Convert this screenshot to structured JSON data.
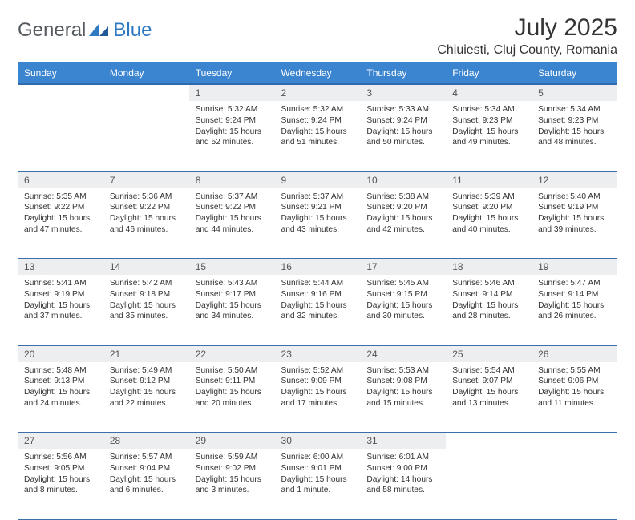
{
  "brand": {
    "part1": "General",
    "part2": "Blue"
  },
  "title": "July 2025",
  "location": "Chiuiesti, Cluj County, Romania",
  "colors": {
    "header_bg": "#3b84d0",
    "header_border": "#2f6bac",
    "row_border": "#3b6fa8",
    "daynum_bg": "#eceef0",
    "brand_gray": "#555a60",
    "brand_blue": "#2f78c2",
    "text": "#333333",
    "bg": "#ffffff"
  },
  "day_headers": [
    "Sunday",
    "Monday",
    "Tuesday",
    "Wednesday",
    "Thursday",
    "Friday",
    "Saturday"
  ],
  "weeks": [
    {
      "nums": [
        "",
        "",
        "1",
        "2",
        "3",
        "4",
        "5"
      ],
      "cells": [
        null,
        null,
        {
          "sunrise": "Sunrise: 5:32 AM",
          "sunset": "Sunset: 9:24 PM",
          "daylight": "Daylight: 15 hours and 52 minutes."
        },
        {
          "sunrise": "Sunrise: 5:32 AM",
          "sunset": "Sunset: 9:24 PM",
          "daylight": "Daylight: 15 hours and 51 minutes."
        },
        {
          "sunrise": "Sunrise: 5:33 AM",
          "sunset": "Sunset: 9:24 PM",
          "daylight": "Daylight: 15 hours and 50 minutes."
        },
        {
          "sunrise": "Sunrise: 5:34 AM",
          "sunset": "Sunset: 9:23 PM",
          "daylight": "Daylight: 15 hours and 49 minutes."
        },
        {
          "sunrise": "Sunrise: 5:34 AM",
          "sunset": "Sunset: 9:23 PM",
          "daylight": "Daylight: 15 hours and 48 minutes."
        }
      ]
    },
    {
      "nums": [
        "6",
        "7",
        "8",
        "9",
        "10",
        "11",
        "12"
      ],
      "cells": [
        {
          "sunrise": "Sunrise: 5:35 AM",
          "sunset": "Sunset: 9:22 PM",
          "daylight": "Daylight: 15 hours and 47 minutes."
        },
        {
          "sunrise": "Sunrise: 5:36 AM",
          "sunset": "Sunset: 9:22 PM",
          "daylight": "Daylight: 15 hours and 46 minutes."
        },
        {
          "sunrise": "Sunrise: 5:37 AM",
          "sunset": "Sunset: 9:22 PM",
          "daylight": "Daylight: 15 hours and 44 minutes."
        },
        {
          "sunrise": "Sunrise: 5:37 AM",
          "sunset": "Sunset: 9:21 PM",
          "daylight": "Daylight: 15 hours and 43 minutes."
        },
        {
          "sunrise": "Sunrise: 5:38 AM",
          "sunset": "Sunset: 9:20 PM",
          "daylight": "Daylight: 15 hours and 42 minutes."
        },
        {
          "sunrise": "Sunrise: 5:39 AM",
          "sunset": "Sunset: 9:20 PM",
          "daylight": "Daylight: 15 hours and 40 minutes."
        },
        {
          "sunrise": "Sunrise: 5:40 AM",
          "sunset": "Sunset: 9:19 PM",
          "daylight": "Daylight: 15 hours and 39 minutes."
        }
      ]
    },
    {
      "nums": [
        "13",
        "14",
        "15",
        "16",
        "17",
        "18",
        "19"
      ],
      "cells": [
        {
          "sunrise": "Sunrise: 5:41 AM",
          "sunset": "Sunset: 9:19 PM",
          "daylight": "Daylight: 15 hours and 37 minutes."
        },
        {
          "sunrise": "Sunrise: 5:42 AM",
          "sunset": "Sunset: 9:18 PM",
          "daylight": "Daylight: 15 hours and 35 minutes."
        },
        {
          "sunrise": "Sunrise: 5:43 AM",
          "sunset": "Sunset: 9:17 PM",
          "daylight": "Daylight: 15 hours and 34 minutes."
        },
        {
          "sunrise": "Sunrise: 5:44 AM",
          "sunset": "Sunset: 9:16 PM",
          "daylight": "Daylight: 15 hours and 32 minutes."
        },
        {
          "sunrise": "Sunrise: 5:45 AM",
          "sunset": "Sunset: 9:15 PM",
          "daylight": "Daylight: 15 hours and 30 minutes."
        },
        {
          "sunrise": "Sunrise: 5:46 AM",
          "sunset": "Sunset: 9:14 PM",
          "daylight": "Daylight: 15 hours and 28 minutes."
        },
        {
          "sunrise": "Sunrise: 5:47 AM",
          "sunset": "Sunset: 9:14 PM",
          "daylight": "Daylight: 15 hours and 26 minutes."
        }
      ]
    },
    {
      "nums": [
        "20",
        "21",
        "22",
        "23",
        "24",
        "25",
        "26"
      ],
      "cells": [
        {
          "sunrise": "Sunrise: 5:48 AM",
          "sunset": "Sunset: 9:13 PM",
          "daylight": "Daylight: 15 hours and 24 minutes."
        },
        {
          "sunrise": "Sunrise: 5:49 AM",
          "sunset": "Sunset: 9:12 PM",
          "daylight": "Daylight: 15 hours and 22 minutes."
        },
        {
          "sunrise": "Sunrise: 5:50 AM",
          "sunset": "Sunset: 9:11 PM",
          "daylight": "Daylight: 15 hours and 20 minutes."
        },
        {
          "sunrise": "Sunrise: 5:52 AM",
          "sunset": "Sunset: 9:09 PM",
          "daylight": "Daylight: 15 hours and 17 minutes."
        },
        {
          "sunrise": "Sunrise: 5:53 AM",
          "sunset": "Sunset: 9:08 PM",
          "daylight": "Daylight: 15 hours and 15 minutes."
        },
        {
          "sunrise": "Sunrise: 5:54 AM",
          "sunset": "Sunset: 9:07 PM",
          "daylight": "Daylight: 15 hours and 13 minutes."
        },
        {
          "sunrise": "Sunrise: 5:55 AM",
          "sunset": "Sunset: 9:06 PM",
          "daylight": "Daylight: 15 hours and 11 minutes."
        }
      ]
    },
    {
      "nums": [
        "27",
        "28",
        "29",
        "30",
        "31",
        "",
        ""
      ],
      "cells": [
        {
          "sunrise": "Sunrise: 5:56 AM",
          "sunset": "Sunset: 9:05 PM",
          "daylight": "Daylight: 15 hours and 8 minutes."
        },
        {
          "sunrise": "Sunrise: 5:57 AM",
          "sunset": "Sunset: 9:04 PM",
          "daylight": "Daylight: 15 hours and 6 minutes."
        },
        {
          "sunrise": "Sunrise: 5:59 AM",
          "sunset": "Sunset: 9:02 PM",
          "daylight": "Daylight: 15 hours and 3 minutes."
        },
        {
          "sunrise": "Sunrise: 6:00 AM",
          "sunset": "Sunset: 9:01 PM",
          "daylight": "Daylight: 15 hours and 1 minute."
        },
        {
          "sunrise": "Sunrise: 6:01 AM",
          "sunset": "Sunset: 9:00 PM",
          "daylight": "Daylight: 14 hours and 58 minutes."
        },
        null,
        null
      ]
    }
  ]
}
